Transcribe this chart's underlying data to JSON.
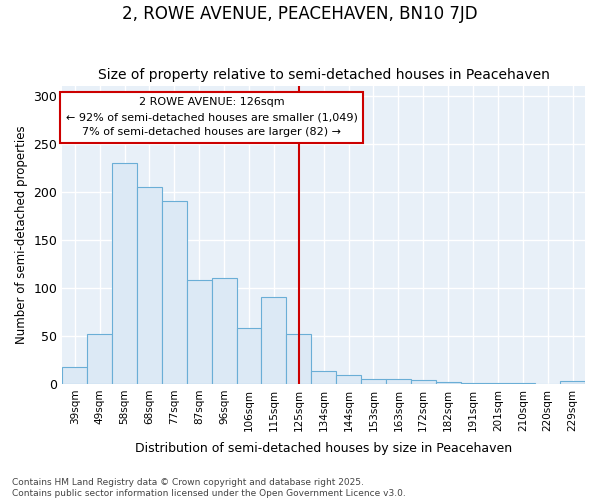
{
  "title": "2, ROWE AVENUE, PEACEHAVEN, BN10 7JD",
  "subtitle": "Size of property relative to semi-detached houses in Peacehaven",
  "xlabel": "Distribution of semi-detached houses by size in Peacehaven",
  "ylabel": "Number of semi-detached properties",
  "categories": [
    "39sqm",
    "49sqm",
    "58sqm",
    "68sqm",
    "77sqm",
    "87sqm",
    "96sqm",
    "106sqm",
    "115sqm",
    "125sqm",
    "134sqm",
    "144sqm",
    "153sqm",
    "163sqm",
    "172sqm",
    "182sqm",
    "191sqm",
    "201sqm",
    "210sqm",
    "220sqm",
    "229sqm"
  ],
  "values": [
    18,
    52,
    230,
    205,
    190,
    108,
    110,
    58,
    90,
    52,
    13,
    9,
    5,
    5,
    4,
    2,
    1,
    1,
    1,
    0,
    3
  ],
  "bar_color": "#dce9f5",
  "bar_edge_color": "#6aaed6",
  "vline_x_index": 9,
  "vline_label": "2 ROWE AVENUE: 126sqm",
  "pct_smaller": 92,
  "n_smaller": 1049,
  "pct_larger": 7,
  "n_larger": 82,
  "annotation_box_color": "#ffffff",
  "annotation_box_edge": "#cc0000",
  "vline_color": "#cc0000",
  "ylim": [
    0,
    310
  ],
  "yticks": [
    0,
    50,
    100,
    150,
    200,
    250,
    300
  ],
  "footer": "Contains HM Land Registry data © Crown copyright and database right 2025.\nContains public sector information licensed under the Open Government Licence v3.0.",
  "bg_color": "#e8f0f8",
  "title_fontsize": 12,
  "subtitle_fontsize": 10,
  "annotation_fontsize": 8
}
